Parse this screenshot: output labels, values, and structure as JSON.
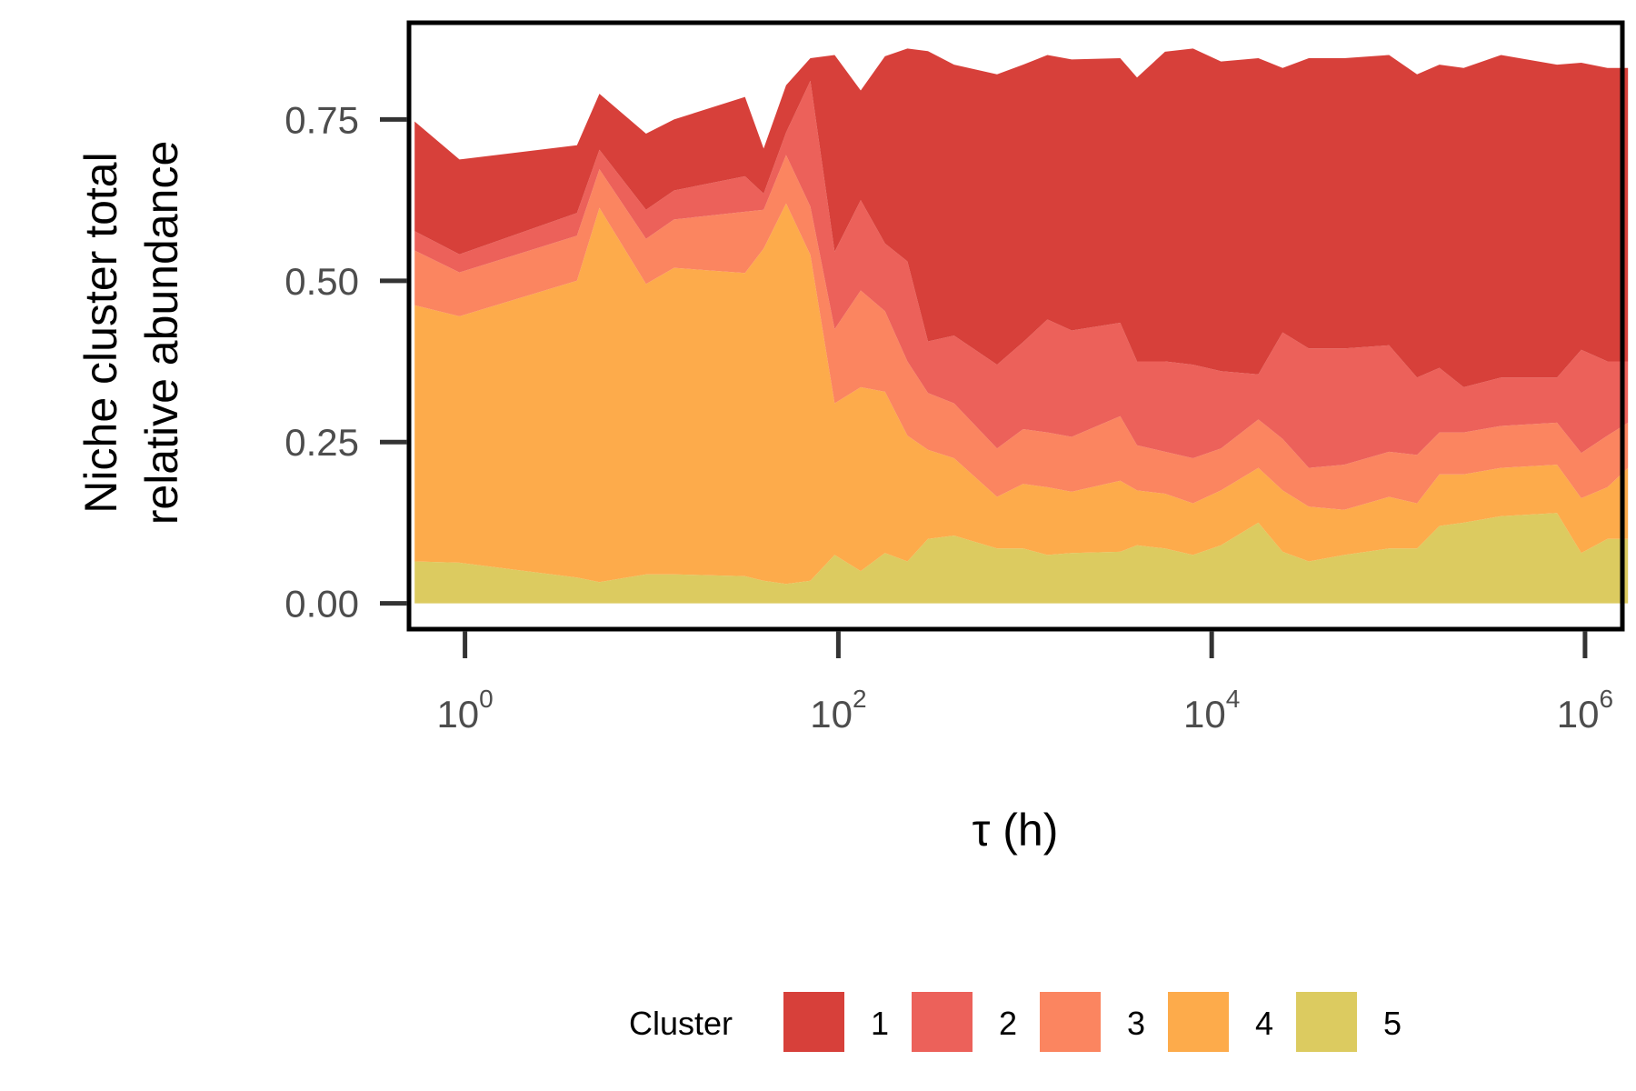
{
  "chart_data": {
    "type": "area",
    "stacked": true,
    "title": "",
    "xlabel": "τ (h)",
    "ylabel_lines": [
      "Niche cluster total",
      "relative abundance"
    ],
    "x_scale": "log10",
    "xlim_log10": [
      -0.3,
      6.2
    ],
    "ylim": [
      -0.04,
      0.9
    ],
    "x_ticks": [
      {
        "base": "10",
        "exp": "0",
        "log10": 0
      },
      {
        "base": "10",
        "exp": "2",
        "log10": 2
      },
      {
        "base": "10",
        "exp": "4",
        "log10": 4
      },
      {
        "base": "10",
        "exp": "6",
        "log10": 6
      }
    ],
    "y_ticks": [
      {
        "label": "0.00",
        "value": 0
      },
      {
        "label": "0.25",
        "value": 0.25
      },
      {
        "label": "0.50",
        "value": 0.5
      },
      {
        "label": "0.75",
        "value": 0.75
      }
    ],
    "x_log10": [
      -0.27,
      -0.03,
      0.6,
      0.72,
      0.97,
      1.12,
      1.5,
      1.6,
      1.72,
      1.85,
      1.98,
      2.12,
      2.25,
      2.37,
      2.48,
      2.62,
      2.85,
      2.99,
      3.12,
      3.25,
      3.51,
      3.6,
      3.75,
      3.9,
      4.05,
      4.25,
      4.38,
      4.52,
      4.71,
      4.95,
      5.1,
      5.22,
      5.35,
      5.55,
      5.85,
      5.98,
      6.12,
      6.23
    ],
    "legend": {
      "title": "Cluster",
      "position": "bottom"
    },
    "series": [
      {
        "name": "5",
        "color": "#DCCB60",
        "values": [
          0.065,
          0.063,
          0.04,
          0.033,
          0.045,
          0.045,
          0.042,
          0.035,
          0.03,
          0.035,
          0.075,
          0.05,
          0.078,
          0.065,
          0.1,
          0.105,
          0.085,
          0.085,
          0.075,
          0.078,
          0.08,
          0.09,
          0.085,
          0.075,
          0.09,
          0.125,
          0.08,
          0.065,
          0.075,
          0.085,
          0.085,
          0.12,
          0.125,
          0.135,
          0.14,
          0.078,
          0.1,
          0.1
        ]
      },
      {
        "name": "4",
        "color": "#FDAB4B",
        "values": [
          0.397,
          0.382,
          0.46,
          0.58,
          0.45,
          0.475,
          0.47,
          0.515,
          0.59,
          0.505,
          0.235,
          0.285,
          0.25,
          0.195,
          0.138,
          0.12,
          0.08,
          0.1,
          0.105,
          0.095,
          0.11,
          0.085,
          0.085,
          0.08,
          0.085,
          0.085,
          0.095,
          0.085,
          0.07,
          0.08,
          0.07,
          0.08,
          0.075,
          0.075,
          0.075,
          0.085,
          0.08,
          0.11
        ]
      },
      {
        "name": "3",
        "color": "#FB8560",
        "values": [
          0.085,
          0.068,
          0.07,
          0.06,
          0.07,
          0.075,
          0.095,
          0.06,
          0.075,
          0.075,
          0.115,
          0.15,
          0.125,
          0.115,
          0.088,
          0.085,
          0.075,
          0.085,
          0.085,
          0.085,
          0.1,
          0.07,
          0.065,
          0.07,
          0.065,
          0.075,
          0.08,
          0.06,
          0.07,
          0.07,
          0.075,
          0.065,
          0.065,
          0.065,
          0.065,
          0.07,
          0.08,
          0.07
        ]
      },
      {
        "name": "2",
        "color": "#EC615A",
        "values": [
          0.03,
          0.028,
          0.035,
          0.03,
          0.045,
          0.045,
          0.055,
          0.025,
          0.035,
          0.195,
          0.12,
          0.14,
          0.105,
          0.155,
          0.08,
          0.105,
          0.13,
          0.135,
          0.175,
          0.165,
          0.145,
          0.13,
          0.14,
          0.145,
          0.12,
          0.07,
          0.165,
          0.185,
          0.18,
          0.165,
          0.12,
          0.1,
          0.07,
          0.075,
          0.07,
          0.16,
          0.115,
          0.095
        ]
      },
      {
        "name": "1",
        "color": "#D7403A",
        "values": [
          0.17,
          0.147,
          0.105,
          0.087,
          0.118,
          0.11,
          0.123,
          0.07,
          0.073,
          0.035,
          0.305,
          0.17,
          0.29,
          0.33,
          0.45,
          0.42,
          0.45,
          0.43,
          0.41,
          0.42,
          0.41,
          0.44,
          0.48,
          0.49,
          0.48,
          0.49,
          0.41,
          0.45,
          0.45,
          0.45,
          0.47,
          0.47,
          0.495,
          0.5,
          0.485,
          0.445,
          0.455,
          0.455
        ]
      }
    ]
  }
}
